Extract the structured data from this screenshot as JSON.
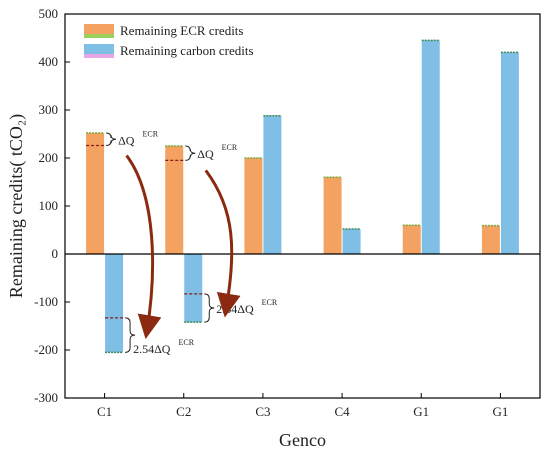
{
  "chart_data": {
    "type": "bar",
    "xlabel": "Genco",
    "ylabel": "Remaining credits( tCO₂)",
    "ylim": [
      -300,
      500
    ],
    "yticks": [
      -300,
      -200,
      -100,
      0,
      100,
      200,
      300,
      400,
      500
    ],
    "categories": [
      "C1",
      "C2",
      "C3",
      "C4",
      "G1",
      "G1"
    ],
    "grid": false,
    "legend_position": "top-left",
    "series": [
      {
        "name": "Remaining ECR credits",
        "color": "#f4a261",
        "values": [
          252,
          225,
          200,
          160,
          60,
          59
        ]
      },
      {
        "name": "Remaining carbon credits",
        "color": "#7fbfe6",
        "values": [
          -205,
          -142,
          288,
          52,
          445,
          420
        ]
      }
    ],
    "reference_lines": [
      {
        "category": "C1",
        "series": "Remaining ECR credits",
        "value": 226
      },
      {
        "category": "C1",
        "series": "Remaining carbon credits",
        "value": -133
      },
      {
        "category": "C2",
        "series": "Remaining ECR credits",
        "value": 195
      },
      {
        "category": "C2",
        "series": "Remaining carbon credits",
        "value": -83
      }
    ],
    "annotations": [
      {
        "category": "C1",
        "series": "Remaining ECR credits",
        "text": "ΔQ",
        "subscript": "ECR"
      },
      {
        "category": "C2",
        "series": "Remaining ECR credits",
        "text": "ΔQ",
        "subscript": "ECR"
      },
      {
        "category": "C1",
        "series": "Remaining carbon credits",
        "text": "2.54ΔQ",
        "subscript": "ECR"
      },
      {
        "category": "C2",
        "series": "Remaining carbon credits",
        "text": "2.54ΔQ",
        "subscript": "ECR"
      }
    ]
  }
}
